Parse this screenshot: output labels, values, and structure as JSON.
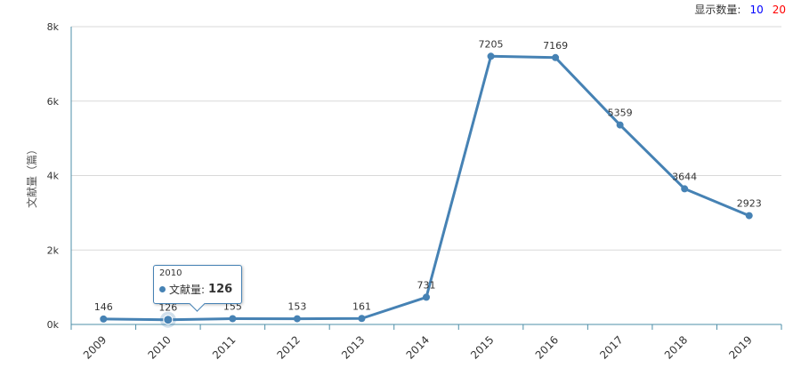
{
  "controls": {
    "label": "显示数量:",
    "options": [
      {
        "label": "10",
        "color": "#0000ff"
      },
      {
        "label": "20",
        "color": "#ff0000"
      }
    ]
  },
  "colors": {
    "series": "#4682b4",
    "grid": "#d9d9d9",
    "axis": "#4e8fa8"
  },
  "tooltip": {
    "year": "2010",
    "series_label": "文献量:",
    "value": "126"
  },
  "chart_data": {
    "type": "line",
    "title": "",
    "xlabel": "",
    "ylabel": "文献量（篇）",
    "categories": [
      "2009",
      "2010",
      "2011",
      "2012",
      "2013",
      "2014",
      "2015",
      "2016",
      "2017",
      "2018",
      "2019"
    ],
    "series": [
      {
        "values": [
          146,
          126,
          155,
          153,
          161,
          731,
          7205,
          7169,
          5359,
          3644,
          2923
        ]
      }
    ],
    "data_labels": [
      "146",
      "126",
      "155",
      "153",
      "161",
      "731",
      "7205",
      "7169",
      "5359",
      "3644",
      "2923"
    ],
    "ylim": [
      0,
      8000
    ],
    "yticks": [
      0,
      2000,
      4000,
      6000,
      8000
    ],
    "ytick_labels": [
      "0k",
      "2k",
      "4k",
      "6k",
      "8k"
    ],
    "grid": true,
    "highlight_index": 1
  }
}
